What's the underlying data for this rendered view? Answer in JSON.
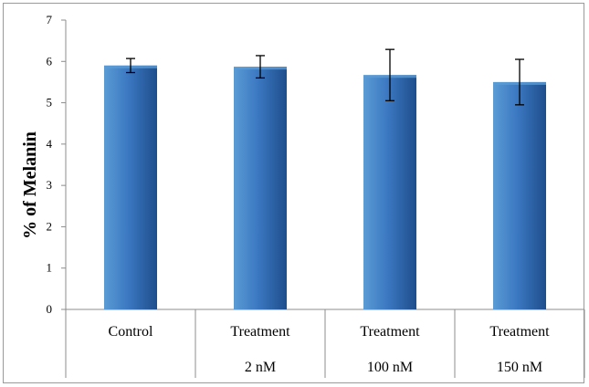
{
  "chart_data": {
    "type": "bar",
    "title": "",
    "xlabel": "",
    "ylabel": "% of Melanin",
    "ylim": [
      0,
      7
    ],
    "yticks": [
      0,
      1,
      2,
      3,
      4,
      5,
      6,
      7
    ],
    "grid": false,
    "legend": "none",
    "categories": [
      {
        "lines": [
          "Control"
        ]
      },
      {
        "lines": [
          "Treatment",
          "2 nM"
        ]
      },
      {
        "lines": [
          "Treatment",
          "100 nM"
        ]
      },
      {
        "lines": [
          "Treatment",
          "150 nM"
        ]
      }
    ],
    "values": [
      5.9,
      5.87,
      5.67,
      5.5
    ],
    "error": [
      0.17,
      0.27,
      0.62,
      0.55
    ],
    "colors": {
      "bar_top": "#5b9bd5",
      "bar_mid": "#3b78c2",
      "bar_bottom": "#1f4e8c",
      "axis": "#8c8c8c"
    }
  }
}
